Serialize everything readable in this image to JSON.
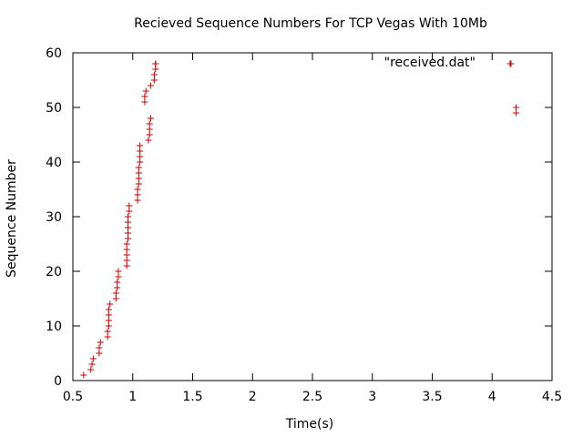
{
  "chart_data": {
    "type": "scatter",
    "title": "Recieved Sequence Numbers For TCP Vegas With 10Mb",
    "xlabel": "Time(s)",
    "ylabel": "Sequence Number",
    "xlim": [
      0.5,
      4.5
    ],
    "ylim": [
      0,
      60
    ],
    "xticks": [
      0.5,
      1,
      1.5,
      2,
      2.5,
      3,
      3.5,
      4,
      4.5
    ],
    "xtick_labels": [
      "0.5",
      "1",
      "1.5",
      "2",
      "2.5",
      "3",
      "3.5",
      "4",
      "4.5"
    ],
    "yticks": [
      0,
      10,
      20,
      30,
      40,
      50,
      60
    ],
    "ytick_labels": [
      "0",
      "10",
      "20",
      "30",
      "40",
      "50",
      "60"
    ],
    "grid": false,
    "legend_position": "top-right",
    "marker": "plus",
    "color": "#cc0000",
    "series": [
      {
        "name": "\"received.dat\"",
        "x": [
          0.59,
          0.65,
          0.66,
          0.67,
          0.72,
          0.72,
          0.73,
          0.79,
          0.79,
          0.8,
          0.8,
          0.8,
          0.8,
          0.81,
          0.86,
          0.86,
          0.87,
          0.87,
          0.88,
          0.88,
          0.95,
          0.95,
          0.95,
          0.95,
          0.95,
          0.96,
          0.96,
          0.96,
          0.96,
          0.96,
          0.97,
          0.97,
          1.04,
          1.04,
          1.04,
          1.05,
          1.05,
          1.05,
          1.05,
          1.06,
          1.06,
          1.06,
          1.06,
          1.1,
          1.1,
          1.11,
          1.13,
          1.14,
          1.14,
          1.14,
          1.15,
          1.15,
          1.18,
          1.18,
          1.19,
          1.19,
          1.19,
          4.15,
          4.2,
          4.2
        ],
        "y": [
          1,
          2,
          3,
          4,
          5,
          6,
          7,
          8,
          9,
          10,
          11,
          12,
          13,
          14,
          15,
          16,
          17,
          18,
          19,
          20,
          21,
          22,
          23,
          24,
          25,
          26,
          27,
          28,
          29,
          30,
          31,
          32,
          33,
          34,
          35,
          36,
          37,
          38,
          39,
          40,
          41,
          42,
          43,
          51,
          52,
          53,
          44,
          45,
          46,
          47,
          48,
          54,
          55,
          56,
          57,
          58,
          58,
          58,
          49,
          50
        ]
      }
    ]
  }
}
